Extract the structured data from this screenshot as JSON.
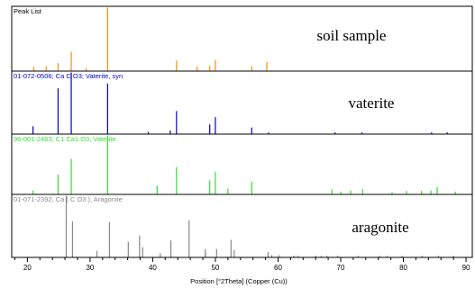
{
  "chart_data": {
    "type": "stacked-stick-pattern",
    "xlabel": "Position [°2Theta] (Copper (Cu))",
    "xlim": [
      17.5,
      91
    ],
    "xticks": [
      20,
      30,
      40,
      50,
      60,
      70,
      80,
      90
    ],
    "panels": [
      {
        "label": "Peak List",
        "title": "soil sample",
        "color": "#ff8c00",
        "label_color": "#000000",
        "ymax": 1.0,
        "peaks": [
          {
            "x": 21.0,
            "y": 0.06
          },
          {
            "x": 23.0,
            "y": 0.07
          },
          {
            "x": 24.9,
            "y": 0.12
          },
          {
            "x": 27.0,
            "y": 0.3
          },
          {
            "x": 29.4,
            "y": 0.04
          },
          {
            "x": 32.8,
            "y": 1.0
          },
          {
            "x": 43.8,
            "y": 0.16
          },
          {
            "x": 47.1,
            "y": 0.07
          },
          {
            "x": 49.1,
            "y": 0.08
          },
          {
            "x": 50.0,
            "y": 0.17
          },
          {
            "x": 55.8,
            "y": 0.07
          },
          {
            "x": 58.2,
            "y": 0.14
          }
        ]
      },
      {
        "label": "01-072-0506; Ca C O3; Vaterite, syn",
        "title": "vaterite",
        "color": "#0000cc",
        "label_color": "#0000cc",
        "ymax": 1.0,
        "peaks": [
          {
            "x": 20.9,
            "y": 0.12
          },
          {
            "x": 24.9,
            "y": 0.74
          },
          {
            "x": 27.0,
            "y": 1.0
          },
          {
            "x": 32.8,
            "y": 0.82
          },
          {
            "x": 39.3,
            "y": 0.03
          },
          {
            "x": 42.8,
            "y": 0.05
          },
          {
            "x": 43.8,
            "y": 0.37
          },
          {
            "x": 49.1,
            "y": 0.15
          },
          {
            "x": 50.0,
            "y": 0.27
          },
          {
            "x": 55.8,
            "y": 0.1
          },
          {
            "x": 58.5,
            "y": 0.02
          },
          {
            "x": 69.1,
            "y": 0.02
          },
          {
            "x": 73.4,
            "y": 0.02
          },
          {
            "x": 84.5,
            "y": 0.02
          },
          {
            "x": 87.0,
            "y": 0.02
          }
        ]
      },
      {
        "label": "96-001-2463; C1 Ca1 O3; Vaterite",
        "title": "",
        "color": "#33dd33",
        "label_color": "#33dd33",
        "ymax": 1.0,
        "peaks": [
          {
            "x": 20.9,
            "y": 0.06
          },
          {
            "x": 24.9,
            "y": 0.33
          },
          {
            "x": 27.0,
            "y": 0.6
          },
          {
            "x": 32.8,
            "y": 1.0
          },
          {
            "x": 40.7,
            "y": 0.14
          },
          {
            "x": 43.8,
            "y": 0.46
          },
          {
            "x": 49.1,
            "y": 0.23
          },
          {
            "x": 50.0,
            "y": 0.38
          },
          {
            "x": 52.0,
            "y": 0.09
          },
          {
            "x": 55.8,
            "y": 0.21
          },
          {
            "x": 68.6,
            "y": 0.08
          },
          {
            "x": 70.0,
            "y": 0.04
          },
          {
            "x": 71.6,
            "y": 0.06
          },
          {
            "x": 73.5,
            "y": 0.08
          },
          {
            "x": 78.2,
            "y": 0.03
          },
          {
            "x": 80.5,
            "y": 0.05
          },
          {
            "x": 82.9,
            "y": 0.05
          },
          {
            "x": 84.4,
            "y": 0.06
          },
          {
            "x": 85.4,
            "y": 0.12
          },
          {
            "x": 88.3,
            "y": 0.04
          }
        ]
      },
      {
        "label": "01-071-2392; Ca ( C O3 ); Aragonite",
        "title": "aragonite",
        "color": "#888888",
        "label_color": "#888888",
        "ymax": 1.0,
        "peaks": [
          {
            "x": 26.2,
            "y": 1.0
          },
          {
            "x": 27.2,
            "y": 0.58
          },
          {
            "x": 31.1,
            "y": 0.1
          },
          {
            "x": 33.1,
            "y": 0.57
          },
          {
            "x": 36.1,
            "y": 0.25
          },
          {
            "x": 37.9,
            "y": 0.35
          },
          {
            "x": 38.4,
            "y": 0.16
          },
          {
            "x": 41.2,
            "y": 0.06
          },
          {
            "x": 42.9,
            "y": 0.27
          },
          {
            "x": 45.8,
            "y": 0.6
          },
          {
            "x": 48.4,
            "y": 0.13
          },
          {
            "x": 48.4,
            "y": 0.07
          },
          {
            "x": 50.2,
            "y": 0.13
          },
          {
            "x": 52.5,
            "y": 0.28
          },
          {
            "x": 53.0,
            "y": 0.11
          },
          {
            "x": 58.4,
            "y": 0.08
          },
          {
            "x": 59.0,
            "y": 0.03
          },
          {
            "x": 60.2,
            "y": 0.03
          },
          {
            "x": 62.5,
            "y": 0.02
          },
          {
            "x": 63.2,
            "y": 0.02
          },
          {
            "x": 66.0,
            "y": 0.02
          },
          {
            "x": 66.9,
            "y": 0.02
          },
          {
            "x": 67.8,
            "y": 0.02
          },
          {
            "x": 69.5,
            "y": 0.02
          },
          {
            "x": 72.8,
            "y": 0.02
          },
          {
            "x": 76.2,
            "y": 0.02
          },
          {
            "x": 77.4,
            "y": 0.02
          },
          {
            "x": 79.8,
            "y": 0.02
          },
          {
            "x": 83.0,
            "y": 0.02
          },
          {
            "x": 85.6,
            "y": 0.02
          },
          {
            "x": 88.0,
            "y": 0.02
          }
        ]
      }
    ]
  }
}
